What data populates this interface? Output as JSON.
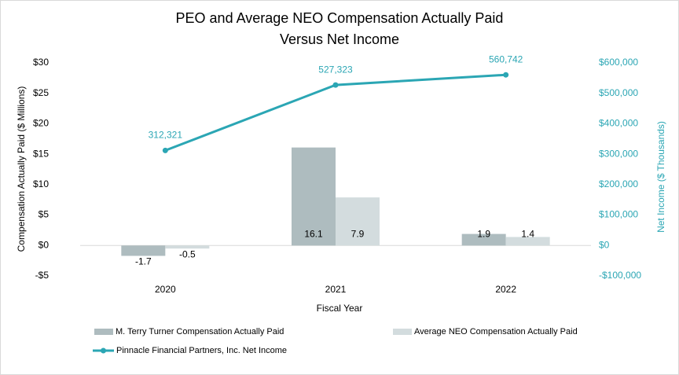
{
  "chart_data": {
    "type": "bar-line",
    "title": [
      "PEO and Average NEO Compensation Actually Paid",
      "Versus Net Income"
    ],
    "xlabel": "Fiscal Year",
    "ylabel": "Compensation Actually Paid ($ Millions)",
    "y2label": "Net Income ($ Thousands)",
    "categories": [
      "2020",
      "2021",
      "2022"
    ],
    "series": [
      {
        "name": "M. Terry Turner Compensation Actually Paid",
        "type": "bar",
        "color": "#aebcbf",
        "values": [
          -1.7,
          16.1,
          1.9
        ]
      },
      {
        "name": "Average NEO Compensation Actually Paid",
        "type": "bar",
        "color": "#d3dcde",
        "values": [
          -0.5,
          7.9,
          1.4
        ]
      },
      {
        "name": "Pinnacle Financial Partners, Inc. Net Income",
        "type": "line",
        "axis": "y2",
        "color": "#2ba6b4",
        "values": [
          312321,
          527323,
          560742
        ],
        "value_labels": [
          "312,321",
          "527,323",
          "560,742"
        ]
      }
    ],
    "ylim": [
      -5,
      30
    ],
    "yticks": [
      {
        "value": -5,
        "label": "-$5"
      },
      {
        "value": 0,
        "label": "$0"
      },
      {
        "value": 5,
        "label": "$5"
      },
      {
        "value": 10,
        "label": "$10"
      },
      {
        "value": 15,
        "label": "$15"
      },
      {
        "value": 20,
        "label": "$20"
      },
      {
        "value": 25,
        "label": "$25"
      },
      {
        "value": 30,
        "label": "$30"
      }
    ],
    "y2lim": [
      -100000,
      600000
    ],
    "y2ticks": [
      {
        "value": -100000,
        "label": "-$100,000"
      },
      {
        "value": 0,
        "label": "$0"
      },
      {
        "value": 100000,
        "label": "$100,000"
      },
      {
        "value": 200000,
        "label": "$200,000"
      },
      {
        "value": 300000,
        "label": "$300,000"
      },
      {
        "value": 400000,
        "label": "$400,000"
      },
      {
        "value": 500000,
        "label": "$500,000"
      },
      {
        "value": 600000,
        "label": "$600,000"
      }
    ],
    "grid": false
  }
}
